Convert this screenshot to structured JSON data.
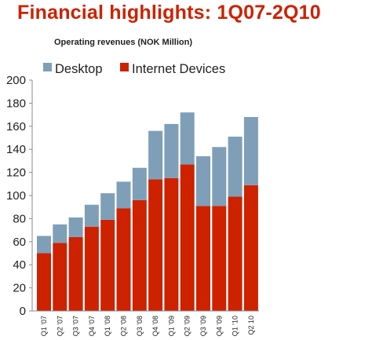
{
  "page": {
    "title": "Financial highlights:  1Q07-2Q10"
  },
  "chart_data": {
    "type": "bar",
    "stacked": true,
    "title": "Operating revenues (NOK Million)",
    "xlabel": "",
    "ylabel": "",
    "ylim": [
      0,
      200
    ],
    "y_ticks": [
      0,
      20,
      40,
      60,
      80,
      100,
      120,
      140,
      160,
      180,
      200
    ],
    "grid": false,
    "legend_position": "top-left",
    "categories": [
      "Q1 '07",
      "Q2 '07",
      "Q3 '07",
      "Q4 '07",
      "Q1 '08",
      "Q2 '08",
      "Q3 '08",
      "Q4 '08",
      "Q1 '09",
      "Q2 '09",
      "Q3 '09",
      "Q4 '09",
      "Q1 '10",
      "Q2 10"
    ],
    "series": [
      {
        "name": "Internet Devices",
        "color": "#cc2200",
        "values": [
          50,
          59,
          64,
          73,
          79,
          89,
          96,
          114,
          115,
          127,
          91,
          91,
          99,
          109
        ]
      },
      {
        "name": "Desktop",
        "color": "#7f9fb8",
        "values": [
          15,
          16,
          17,
          19,
          23,
          23,
          28,
          42,
          47,
          45,
          43,
          51,
          52,
          59
        ]
      }
    ]
  }
}
